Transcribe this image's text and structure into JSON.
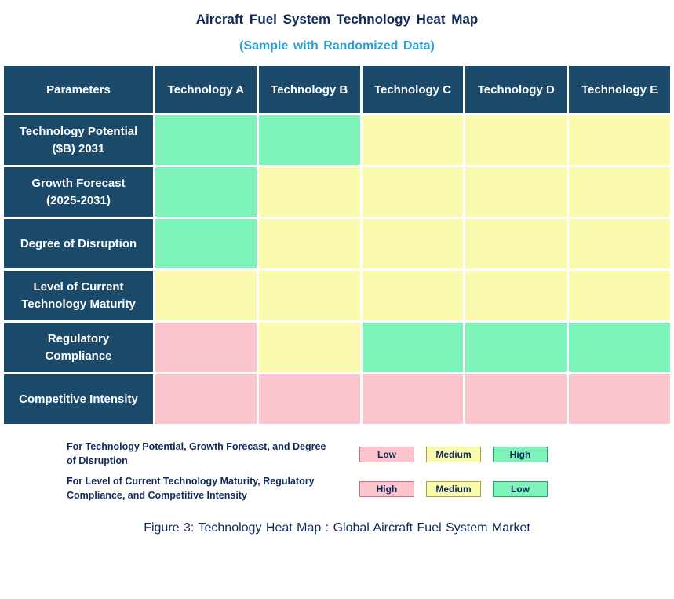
{
  "title": "Aircraft Fuel System Technology Heat Map",
  "subtitle": "(Sample with Randomized Data)",
  "caption": "Figure 3: Technology Heat Map :  Global Aircraft Fuel System Market",
  "colors": {
    "header_bg": "#1b4a6b",
    "title_navy": "#10295c",
    "subtitle_blue": "#2b9fd8",
    "green": "#7df3ba",
    "yellow": "#fafaae",
    "pink": "#fac5cc",
    "green_border": "#2aa55f",
    "yellow_border": "#a8a437",
    "pink_border": "#d96a7c"
  },
  "table": {
    "columns": [
      "Parameters",
      "Technology A",
      "Technology B",
      "Technology C",
      "Technology D",
      "Technology E"
    ],
    "rows": [
      {
        "label": "Technology Potential ($B) 2031",
        "cells": [
          "green",
          "green",
          "yellow",
          "yellow",
          "yellow"
        ]
      },
      {
        "label": "Growth Forecast (2025-2031)",
        "cells": [
          "green",
          "yellow",
          "yellow",
          "yellow",
          "yellow"
        ]
      },
      {
        "label": "Degree of Disruption",
        "cells": [
          "green",
          "yellow",
          "yellow",
          "yellow",
          "yellow"
        ]
      },
      {
        "label": "Level of Current Technology Maturity",
        "cells": [
          "yellow",
          "yellow",
          "yellow",
          "yellow",
          "yellow"
        ]
      },
      {
        "label": "Regulatory Compliance",
        "cells": [
          "pink",
          "yellow",
          "green",
          "green",
          "green"
        ]
      },
      {
        "label": "Competitive Intensity",
        "cells": [
          "pink",
          "pink",
          "pink",
          "pink",
          "pink"
        ]
      }
    ]
  },
  "legend": [
    {
      "text": "For Technology Potential, Growth Forecast, and Degree of Disruption",
      "items": [
        {
          "label": "Low",
          "color": "pink"
        },
        {
          "label": "Medium",
          "color": "yellow"
        },
        {
          "label": "High",
          "color": "green"
        }
      ]
    },
    {
      "text": "For Level of Current Technology Maturity, Regulatory Compliance, and Competitive Intensity",
      "items": [
        {
          "label": "High",
          "color": "pink"
        },
        {
          "label": "Medium",
          "color": "yellow"
        },
        {
          "label": "Low",
          "color": "green"
        }
      ]
    }
  ],
  "chart_data": {
    "type": "heatmap",
    "title": "Aircraft Fuel System Technology Heat Map",
    "subtitle": "(Sample with Randomized Data)",
    "columns": [
      "Technology A",
      "Technology B",
      "Technology C",
      "Technology D",
      "Technology E"
    ],
    "rows": [
      "Technology Potential ($B) 2031",
      "Growth Forecast (2025-2031)",
      "Degree of Disruption",
      "Level of Current Technology Maturity",
      "Regulatory Compliance",
      "Competitive Intensity"
    ],
    "cell_colors": [
      [
        "green",
        "green",
        "yellow",
        "yellow",
        "yellow"
      ],
      [
        "green",
        "yellow",
        "yellow",
        "yellow",
        "yellow"
      ],
      [
        "green",
        "yellow",
        "yellow",
        "yellow",
        "yellow"
      ],
      [
        "yellow",
        "yellow",
        "yellow",
        "yellow",
        "yellow"
      ],
      [
        "pink",
        "yellow",
        "green",
        "green",
        "green"
      ],
      [
        "pink",
        "pink",
        "pink",
        "pink",
        "pink"
      ]
    ],
    "cell_levels": [
      [
        "High",
        "High",
        "Medium",
        "Medium",
        "Medium"
      ],
      [
        "High",
        "Medium",
        "Medium",
        "Medium",
        "Medium"
      ],
      [
        "High",
        "Medium",
        "Medium",
        "Medium",
        "Medium"
      ],
      [
        "Medium",
        "Medium",
        "Medium",
        "Medium",
        "Medium"
      ],
      [
        "High",
        "Medium",
        "Low",
        "Low",
        "Low"
      ],
      [
        "High",
        "High",
        "High",
        "High",
        "High"
      ]
    ],
    "legend_scales": {
      "first_three_rows": {
        "pink": "Low",
        "yellow": "Medium",
        "green": "High"
      },
      "last_three_rows": {
        "pink": "High",
        "yellow": "Medium",
        "green": "Low"
      }
    }
  }
}
